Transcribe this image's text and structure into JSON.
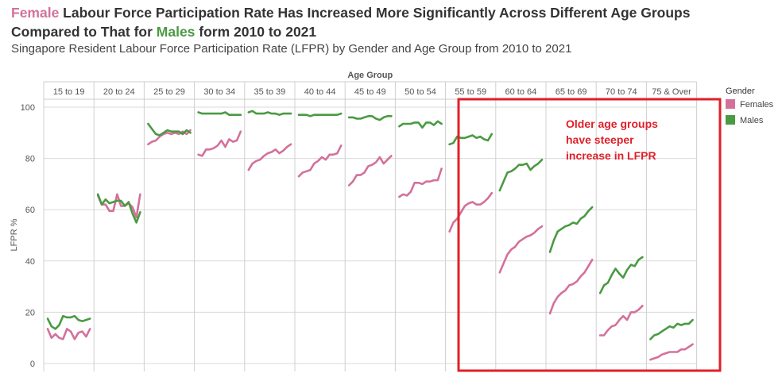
{
  "title": {
    "female_word": "Female",
    "part1": " Labour Force Participation Rate Has Increased More Significantly Across Different Age Groups Compared to That for ",
    "male_word": "Males",
    "part2": " form 2010 to 2021"
  },
  "subtitle": "Singapore Resident Labour Force Participation Rate (LFPR) by Gender and Age Group from 2010 to 2021",
  "annotation": {
    "lines": [
      "Older age groups",
      "have steeper",
      "increase in LFPR"
    ],
    "color": "#e0202a"
  },
  "colors": {
    "female": "#d3719b",
    "male": "#4a9a42",
    "grid": "#d9d9d9"
  },
  "chart_data": {
    "type": "line",
    "title": "Singapore Resident Labour Force Participation Rate (LFPR) by Gender and Age Group from 2010 to 2021",
    "column_header": "Age Group",
    "ylabel": "LFPR %",
    "ylim": [
      0,
      100
    ],
    "yticks": [
      0,
      20,
      40,
      60,
      80,
      100
    ],
    "x": [
      "2010",
      "2011",
      "2012",
      "2013",
      "2014",
      "2015",
      "2016",
      "2017",
      "2018",
      "2019",
      "2020",
      "2021"
    ],
    "legend": {
      "title": "Gender",
      "position": "right",
      "entries": [
        "Females",
        "Males"
      ]
    },
    "groups": [
      {
        "name": "15 to 19",
        "females": [
          13.5,
          10,
          11.5,
          10,
          9.5,
          13.5,
          12.5,
          9.5,
          12,
          12.5,
          10.5,
          13.5
        ],
        "males": [
          17.5,
          14.5,
          13.5,
          15,
          18.5,
          18,
          18,
          18.5,
          17,
          16.5,
          17,
          17.5
        ]
      },
      {
        "name": "20 to 24",
        "females": [
          65.5,
          62,
          62,
          59.5,
          59.5,
          66,
          61.5,
          61.5,
          62.5,
          61,
          57,
          66
        ],
        "males": [
          66,
          62,
          64,
          62.5,
          63,
          63.5,
          63.5,
          61.5,
          63,
          58.5,
          55,
          59
        ]
      },
      {
        "name": "25 to 29",
        "females": [
          85.5,
          86.5,
          87,
          88.5,
          89.5,
          90,
          89.5,
          90,
          89.5,
          90.5,
          89.5,
          91
        ],
        "males": [
          93.5,
          91.5,
          89.5,
          89,
          90,
          91,
          90.5,
          90.5,
          90.5,
          89.5,
          91,
          90
        ]
      },
      {
        "name": "30 to 34",
        "females": [
          81.5,
          81,
          83.5,
          83.5,
          84,
          85,
          87,
          84.5,
          87.5,
          86.5,
          87,
          90.5
        ],
        "males": [
          98,
          97.5,
          97.5,
          97.5,
          97.5,
          97.5,
          97.5,
          98,
          97,
          97,
          97,
          97
        ]
      },
      {
        "name": "35 to 39",
        "females": [
          75.5,
          78,
          79,
          79.5,
          81,
          82,
          82.5,
          83.5,
          82,
          83,
          84.5,
          85.5
        ],
        "males": [
          98,
          98.5,
          97.5,
          97.5,
          97.5,
          98,
          97.5,
          97.5,
          97,
          97.5,
          97.5,
          97.5
        ]
      },
      {
        "name": "40 to 44",
        "females": [
          73,
          74.5,
          75,
          75.5,
          78,
          79,
          80.5,
          79.5,
          81.5,
          81.5,
          82,
          85
        ],
        "males": [
          97,
          97,
          97,
          96.5,
          97,
          97,
          97,
          97,
          97,
          97,
          97,
          97.5
        ]
      },
      {
        "name": "45 to 49",
        "females": [
          69.5,
          71,
          73.5,
          73.5,
          74.5,
          77,
          77.5,
          78.5,
          80.5,
          78,
          79.5,
          81
        ],
        "males": [
          96,
          96,
          95.5,
          95.5,
          96,
          96.5,
          96.5,
          95.5,
          95,
          96,
          96.5,
          96.5
        ]
      },
      {
        "name": "50 to 54",
        "females": [
          65,
          66,
          65.5,
          67,
          70.5,
          70.5,
          70,
          71,
          71,
          71.5,
          71.5,
          76
        ],
        "males": [
          92.5,
          93.5,
          93.5,
          93.5,
          94,
          94,
          92,
          94,
          94,
          93,
          94.5,
          93.5
        ]
      },
      {
        "name": "55 to 59",
        "females": [
          51.5,
          55,
          56.5,
          59,
          61.5,
          62.5,
          63,
          62,
          62,
          63,
          64.5,
          66.5
        ],
        "males": [
          85.5,
          86,
          88.5,
          88,
          88,
          88.5,
          89,
          88,
          88.5,
          87.5,
          87,
          89.5
        ]
      },
      {
        "name": "60 to 64",
        "females": [
          35.5,
          39,
          42.5,
          44.5,
          45.5,
          47.5,
          48.5,
          49.5,
          50,
          51,
          52.5,
          53.5
        ],
        "males": [
          67.5,
          71,
          74.5,
          75,
          76,
          77.5,
          77.5,
          78,
          75.5,
          77,
          78,
          79.5
        ]
      },
      {
        "name": "65 to 69",
        "females": [
          19.5,
          23.5,
          26,
          27.5,
          28.5,
          30.5,
          31,
          32,
          34,
          35.5,
          38,
          40.5
        ],
        "males": [
          43.5,
          48,
          51.5,
          52.5,
          53.5,
          54,
          55,
          54.5,
          56.5,
          57.5,
          59.5,
          61
        ]
      },
      {
        "name": "70 to 74",
        "females": [
          11,
          11,
          13,
          14.5,
          15,
          17,
          18.5,
          17,
          20,
          20,
          21,
          22.5
        ],
        "males": [
          27.5,
          30.5,
          31.5,
          34.5,
          37,
          35,
          33.5,
          36.5,
          38.5,
          38,
          40.5,
          41.5
        ]
      },
      {
        "name": "75 & Over",
        "females": [
          1.5,
          2,
          2.5,
          3.5,
          4,
          4.5,
          4.5,
          4.5,
          5.5,
          5.5,
          6.5,
          7.5
        ],
        "males": [
          9.5,
          11,
          11.5,
          12.5,
          13.5,
          14.5,
          14,
          15.5,
          15,
          15.5,
          15.5,
          17
        ]
      }
    ]
  }
}
